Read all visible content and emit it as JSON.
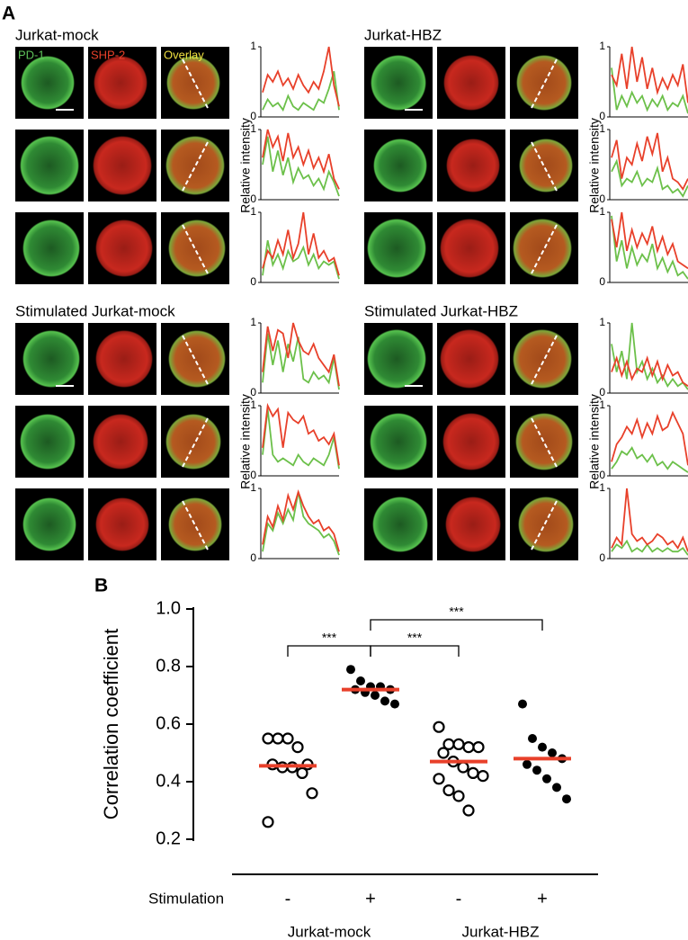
{
  "panel_a": {
    "label": "A",
    "channels": [
      "PD-1",
      "SHP-2",
      "Overlay"
    ],
    "channel_colors": [
      "#5ec25a",
      "#e8402a",
      "#f0e040"
    ],
    "ylabel": "Relative intensity",
    "ylim": [
      0,
      1
    ],
    "yticks": [
      0,
      1
    ],
    "green_color": "#6cc04a",
    "red_color": "#e8402a",
    "groups": [
      {
        "title": "Jurkat-mock",
        "rows": [
          {
            "red": [
              0.35,
              0.6,
              0.5,
              0.65,
              0.45,
              0.55,
              0.4,
              0.6,
              0.45,
              0.35,
              0.5,
              0.4,
              0.65,
              1.0,
              0.45,
              0.15
            ],
            "green": [
              0.1,
              0.25,
              0.15,
              0.2,
              0.1,
              0.3,
              0.15,
              0.1,
              0.2,
              0.15,
              0.1,
              0.25,
              0.2,
              0.4,
              0.65,
              0.1
            ]
          },
          {
            "red": [
              0.6,
              1.0,
              0.75,
              0.9,
              0.55,
              0.95,
              0.6,
              0.75,
              0.5,
              0.7,
              0.45,
              0.6,
              0.4,
              0.65,
              0.3,
              0.15
            ],
            "green": [
              0.5,
              0.9,
              0.4,
              0.7,
              0.35,
              0.6,
              0.25,
              0.45,
              0.3,
              0.35,
              0.2,
              0.3,
              0.15,
              0.4,
              0.25,
              0.05
            ]
          },
          {
            "red": [
              0.2,
              0.45,
              0.35,
              0.6,
              0.4,
              0.75,
              0.35,
              0.55,
              1.0,
              0.4,
              0.7,
              0.35,
              0.45,
              0.3,
              0.35,
              0.1
            ],
            "green": [
              0.1,
              0.6,
              0.25,
              0.4,
              0.2,
              0.45,
              0.3,
              0.35,
              0.5,
              0.25,
              0.4,
              0.2,
              0.3,
              0.25,
              0.3,
              0.05
            ]
          }
        ]
      },
      {
        "title": "Jurkat-HBZ",
        "rows": [
          {
            "red": [
              0.6,
              0.45,
              0.9,
              0.4,
              1.0,
              0.5,
              0.85,
              0.4,
              0.7,
              0.35,
              0.55,
              0.4,
              0.6,
              0.45,
              0.75,
              0.2
            ],
            "green": [
              0.7,
              0.1,
              0.3,
              0.15,
              0.35,
              0.2,
              0.3,
              0.1,
              0.25,
              0.15,
              0.3,
              0.1,
              0.2,
              0.15,
              0.3,
              0.05
            ]
          },
          {
            "red": [
              0.6,
              0.85,
              0.3,
              0.6,
              0.5,
              0.8,
              0.55,
              0.9,
              0.65,
              0.95,
              0.4,
              0.6,
              0.3,
              0.25,
              0.15,
              0.3
            ],
            "green": [
              0.4,
              0.55,
              0.2,
              0.3,
              0.25,
              0.4,
              0.2,
              0.3,
              0.25,
              0.45,
              0.15,
              0.2,
              0.1,
              0.15,
              0.05,
              0.2
            ]
          },
          {
            "red": [
              0.9,
              0.5,
              1.0,
              0.45,
              0.75,
              0.5,
              0.7,
              0.55,
              0.8,
              0.45,
              0.65,
              0.4,
              0.55,
              0.3,
              0.25,
              0.2
            ],
            "green": [
              0.95,
              0.3,
              0.6,
              0.2,
              0.5,
              0.25,
              0.4,
              0.3,
              0.55,
              0.2,
              0.35,
              0.15,
              0.3,
              0.1,
              0.15,
              0.05
            ]
          }
        ]
      },
      {
        "title": "Stimulated Jurkat-mock",
        "rows": [
          {
            "red": [
              0.3,
              0.95,
              0.6,
              0.9,
              0.85,
              0.5,
              1.0,
              0.75,
              0.6,
              0.55,
              0.7,
              0.5,
              0.4,
              0.3,
              0.55,
              0.1
            ],
            "green": [
              0.15,
              0.85,
              0.4,
              0.75,
              0.3,
              0.7,
              0.45,
              0.8,
              0.2,
              0.15,
              0.3,
              0.2,
              0.25,
              0.15,
              0.5,
              0.05
            ]
          },
          {
            "red": [
              0.4,
              1.0,
              0.85,
              0.95,
              0.4,
              0.9,
              0.8,
              0.75,
              0.85,
              0.6,
              0.65,
              0.5,
              0.55,
              0.45,
              0.6,
              0.15
            ],
            "green": [
              0.3,
              0.95,
              0.3,
              0.2,
              0.25,
              0.2,
              0.15,
              0.3,
              0.2,
              0.15,
              0.25,
              0.2,
              0.15,
              0.3,
              0.55,
              0.1
            ]
          },
          {
            "red": [
              0.2,
              0.6,
              0.45,
              0.75,
              0.55,
              0.9,
              0.7,
              0.95,
              0.75,
              0.6,
              0.5,
              0.55,
              0.4,
              0.45,
              0.35,
              0.1
            ],
            "green": [
              0.1,
              0.5,
              0.4,
              0.65,
              0.5,
              0.7,
              0.55,
              0.95,
              0.6,
              0.5,
              0.45,
              0.4,
              0.3,
              0.35,
              0.25,
              0.05
            ]
          }
        ]
      },
      {
        "title": "Stimulated Jurkat-HBZ",
        "rows": [
          {
            "red": [
              0.3,
              0.5,
              0.25,
              0.45,
              0.2,
              0.35,
              0.3,
              0.5,
              0.25,
              0.45,
              0.2,
              0.4,
              0.25,
              0.3,
              0.15,
              0.1
            ],
            "green": [
              0.7,
              0.3,
              0.6,
              0.2,
              1.0,
              0.3,
              0.45,
              0.2,
              0.35,
              0.15,
              0.25,
              0.1,
              0.2,
              0.1,
              0.15,
              0.05
            ]
          },
          {
            "red": [
              0.2,
              0.45,
              0.55,
              0.7,
              0.6,
              0.8,
              0.55,
              0.75,
              0.6,
              0.85,
              0.65,
              0.7,
              0.9,
              0.75,
              0.6,
              0.15
            ],
            "green": [
              0.1,
              0.2,
              0.35,
              0.3,
              0.4,
              0.25,
              0.3,
              0.2,
              0.3,
              0.15,
              0.2,
              0.1,
              0.2,
              0.15,
              0.1,
              0.05
            ]
          },
          {
            "red": [
              0.15,
              0.3,
              0.2,
              1.0,
              0.35,
              0.25,
              0.3,
              0.2,
              0.25,
              0.35,
              0.3,
              0.2,
              0.25,
              0.15,
              0.3,
              0.1
            ],
            "green": [
              0.1,
              0.2,
              0.15,
              0.25,
              0.1,
              0.15,
              0.1,
              0.2,
              0.1,
              0.15,
              0.1,
              0.15,
              0.1,
              0.1,
              0.15,
              0.05
            ]
          }
        ]
      }
    ]
  },
  "chart_data": {
    "type": "dot",
    "panel_label": "B",
    "ylabel": "Correlation coefficient",
    "ylim": [
      0.2,
      1.0
    ],
    "yticks": [
      0.2,
      0.4,
      0.6,
      {
        "value": 0.8,
        "label": "0.8"
      },
      {
        "value": 1.0,
        "label": "1.0"
      }
    ],
    "row_label": "Stimulation",
    "categories": [
      "-",
      "+",
      "-",
      "+"
    ],
    "groups": [
      "Jurkat-mock",
      "Jurkat-HBZ"
    ],
    "filled": [
      false,
      true,
      false,
      true
    ],
    "values": [
      [
        0.55,
        0.55,
        0.55,
        0.52,
        0.46,
        0.46,
        0.45,
        0.45,
        0.43,
        0.36,
        0.26
      ],
      [
        0.79,
        0.75,
        0.73,
        0.73,
        0.72,
        0.72,
        0.71,
        0.7,
        0.68,
        0.67
      ],
      [
        0.59,
        0.53,
        0.53,
        0.52,
        0.52,
        0.5,
        0.47,
        0.45,
        0.43,
        0.42,
        0.41,
        0.37,
        0.35,
        0.3
      ],
      [
        0.67,
        0.55,
        0.52,
        0.5,
        0.48,
        0.46,
        0.44,
        0.41,
        0.38,
        0.34
      ]
    ],
    "medians": [
      0.455,
      0.72,
      0.47,
      0.48
    ],
    "median_color": "#e8402a",
    "significance": [
      {
        "pair": [
          0,
          1
        ],
        "label": "***"
      },
      {
        "pair": [
          1,
          2
        ],
        "label": "***"
      },
      {
        "pair": [
          1,
          3
        ],
        "label": "***"
      }
    ]
  }
}
